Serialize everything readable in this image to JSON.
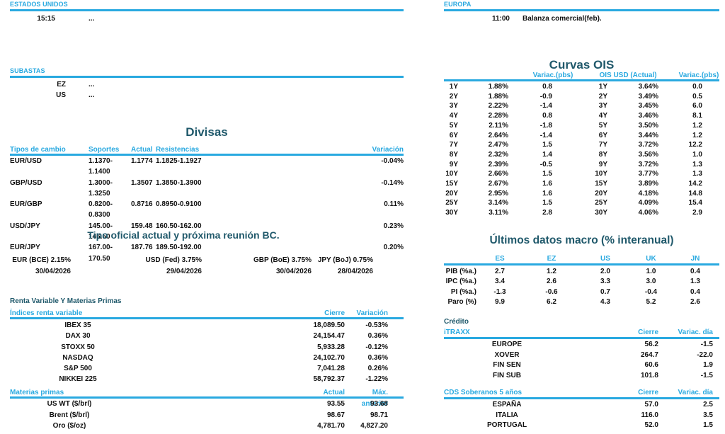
{
  "colors": {
    "accent_cyan": "#29a9e0",
    "title_teal": "#20596b",
    "text": "#101010"
  },
  "left": {
    "estados_unidos": {
      "title": "ESTADOS UNIDOS",
      "rows": [
        {
          "time": "15:15",
          "event": "..."
        }
      ]
    },
    "subastas": {
      "title": "SUBASTAS",
      "rows": [
        {
          "label": "EZ",
          "value": "..."
        },
        {
          "label": "US",
          "value": "..."
        }
      ]
    },
    "divisas": {
      "title": "Divisas",
      "headers": [
        "Tipos de cambio",
        "Soportes",
        "Actual",
        "Resistencias",
        "Variación"
      ],
      "rows": [
        [
          "EUR/USD",
          "1.1370-1.1400",
          "1.1774",
          "1.1825-1.1927",
          "-0.04%"
        ],
        [
          "GBP/USD",
          "1.3000-1.3250",
          "1.3507",
          "1.3850-1.3900",
          "-0.14%"
        ],
        [
          "EUR/GBP",
          "0.8200-0.8300",
          "0.8716",
          "0.8950-0.9100",
          "0.11%"
        ],
        [
          "USD/JPY",
          "145.00-146.50",
          "159.48",
          "160.50-162.00",
          "0.23%"
        ],
        [
          "EUR/JPY",
          "167.00-170.50",
          "187.76",
          "189.50-192.00",
          "0.20%"
        ]
      ]
    },
    "tipo_oficial": {
      "title": "Tipo oficial actual y próxima reunión BC.",
      "items": [
        {
          "label": "EUR (BCE) 2.15%",
          "date": "30/04/2026"
        },
        {
          "label": "USD (Fed) 3.75%",
          "date": "29/04/2026"
        },
        {
          "label": "GBP (BoE) 3.75%",
          "date": "30/04/2026"
        },
        {
          "label": "JPY (BoJ) 0.75%",
          "date": "28/04/2026"
        }
      ]
    },
    "renta_variable": {
      "section_title": "Renta Variable Y Materias Primas",
      "headers": [
        "Índices renta variable",
        "Cierre",
        "Variación"
      ],
      "rows": [
        [
          "IBEX 35",
          "18,089.50",
          "-0.53%"
        ],
        [
          "DAX 30",
          "24,154.47",
          "0.36%"
        ],
        [
          "STOXX 50",
          "5,933.28",
          "-0.12%"
        ],
        [
          "NASDAQ",
          "24,102.70",
          "0.36%"
        ],
        [
          "S&P 500",
          "7,041.28",
          "0.26%"
        ],
        [
          "NIKKEI 225",
          "58,792.37",
          "-1.22%"
        ]
      ]
    },
    "materias_primas": {
      "headers": [
        "Materias primas",
        "Actual",
        "Máx. anterior"
      ],
      "rows": [
        [
          "US WT ($/brl)",
          "93.55",
          "93.68"
        ],
        [
          "Brent ($/brl)",
          "98.67",
          "98.71"
        ],
        [
          "Oro ($/oz)",
          "4,781.70",
          "4,827.20"
        ]
      ]
    }
  },
  "right": {
    "europa": {
      "title": "EUROPA",
      "rows": [
        {
          "time": "11:00",
          "event": "Balanza comercial(feb)."
        }
      ]
    },
    "curvas_ois": {
      "title": "Curvas OIS",
      "headers": {
        "variac_eur": "Variac.(pbs)",
        "usd": "OIS USD (Actual)",
        "variac_usd": "Variac.(pbs)"
      },
      "rows": [
        [
          "1Y",
          "1.88%",
          "0.8",
          "1Y",
          "3.64%",
          "0.0"
        ],
        [
          "2Y",
          "1.88%",
          "-0.9",
          "2Y",
          "3.49%",
          "0.5"
        ],
        [
          "3Y",
          "2.22%",
          "-1.4",
          "3Y",
          "3.45%",
          "6.0"
        ],
        [
          "4Y",
          "2.28%",
          "0.8",
          "4Y",
          "3.46%",
          "8.1"
        ],
        [
          "5Y",
          "2.11%",
          "-1.8",
          "5Y",
          "3.50%",
          "1.2"
        ],
        [
          "6Y",
          "2.64%",
          "-1.4",
          "6Y",
          "3.44%",
          "1.2"
        ],
        [
          "7Y",
          "2.47%",
          "1.5",
          "7Y",
          "3.72%",
          "12.2"
        ],
        [
          "8Y",
          "2.32%",
          "1.4",
          "8Y",
          "3.56%",
          "1.0"
        ],
        [
          "9Y",
          "2.39%",
          "-0.5",
          "9Y",
          "3.72%",
          "1.3"
        ],
        [
          "10Y",
          "2.66%",
          "1.5",
          "10Y",
          "3.77%",
          "1.3"
        ],
        [
          "15Y",
          "2.67%",
          "1.6",
          "15Y",
          "3.89%",
          "14.2"
        ],
        [
          "20Y",
          "2.95%",
          "1.6",
          "20Y",
          "4.18%",
          "14.8"
        ],
        [
          "25Y",
          "3.14%",
          "1.5",
          "25Y",
          "4.09%",
          "15.4"
        ],
        [
          "30Y",
          "3.11%",
          "2.8",
          "30Y",
          "4.06%",
          "2.9"
        ]
      ]
    },
    "datos_macro": {
      "title": "Últimos datos macro (% interanual)",
      "headers": [
        "",
        "ES",
        "EZ",
        "US",
        "UK",
        "JN"
      ],
      "rows": [
        [
          "PIB (%a.)",
          "2.7",
          "1.2",
          "2.0",
          "1.0",
          "0.4"
        ],
        [
          "IPC (%a.)",
          "3.4",
          "2.6",
          "3.3",
          "3.0",
          "1.3"
        ],
        [
          "PI (%a.)",
          "-1.3",
          "-0.6",
          "0.7",
          "-0.4",
          "0.4"
        ],
        [
          "Paro (%)",
          "9.9",
          "6.2",
          "4.3",
          "5.2",
          "2.6"
        ]
      ]
    },
    "credito": {
      "section_title": "Crédito",
      "itraxx": {
        "headers": [
          "iTRAXX",
          "Cierre",
          "Variac. día"
        ],
        "rows": [
          [
            "EUROPE",
            "56.2",
            "-1.5"
          ],
          [
            "XOVER",
            "264.7",
            "-22.0"
          ],
          [
            "FIN SEN",
            "60.6",
            "1.9"
          ],
          [
            "FIN SUB",
            "101.8",
            "-1.5"
          ]
        ]
      }
    },
    "cds_soberanos": {
      "headers": [
        "CDS Soberanos 5 años",
        "Cierre",
        "Variac. día"
      ],
      "rows": [
        [
          "ESPAÑA",
          "57.0",
          "2.5"
        ],
        [
          "ITALIA",
          "116.0",
          "3.5"
        ],
        [
          "PORTUGAL",
          "52.0",
          "1.5"
        ]
      ]
    }
  }
}
